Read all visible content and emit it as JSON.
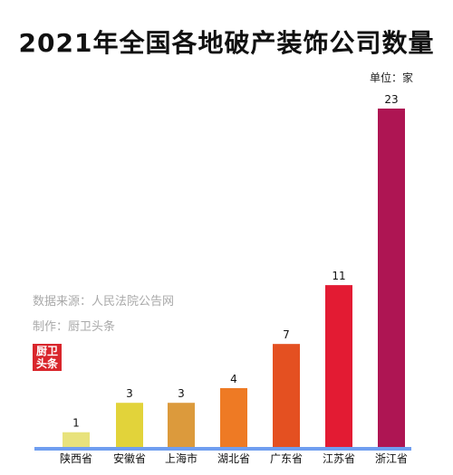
{
  "unit_label": "单位：家",
  "source_note": "数据来源：人民法院公告网",
  "author_note": "制作：厨卫头条",
  "logo": {
    "line1": "厨卫",
    "line2": "头条"
  },
  "chart_data": {
    "type": "bar",
    "title": "2021年全国各地破产装饰公司数量",
    "categories": [
      "陕西省",
      "安徽省",
      "上海市",
      "湖北省",
      "广东省",
      "江苏省",
      "浙江省"
    ],
    "values": [
      1,
      3,
      3,
      4,
      7,
      11,
      23
    ],
    "colors": [
      "#e8e27c",
      "#e2d33a",
      "#dc9a3c",
      "#ee7a24",
      "#e45021",
      "#e31b33",
      "#ae1553"
    ],
    "axis_color": "#6f9ef0",
    "ylim": [
      0,
      23
    ],
    "grid": false,
    "xlabel": "",
    "ylabel": ""
  }
}
